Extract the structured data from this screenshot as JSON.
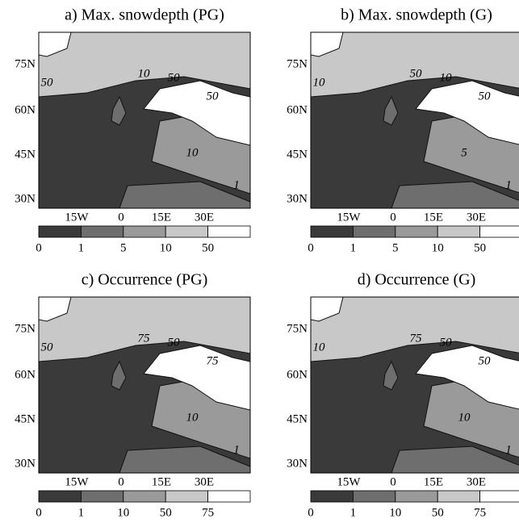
{
  "panels": [
    {
      "title": "a) Max. snowdepth (PG)",
      "lat_labels": [
        "75N",
        "60N",
        "45N",
        "30N"
      ],
      "lon_labels": [
        "15W",
        "0",
        "15E",
        "30E"
      ],
      "colorbar": [
        0,
        1,
        5,
        10,
        50
      ],
      "contour_labels": [
        10,
        50,
        50,
        50,
        10,
        1
      ]
    },
    {
      "title": "b) Max. snowdepth (G)",
      "lat_labels": [
        "75N",
        "60N",
        "45N",
        "30N"
      ],
      "lon_labels": [
        "15W",
        "0",
        "15E",
        "30E"
      ],
      "colorbar": [
        0,
        1,
        5,
        10,
        50
      ],
      "contour_labels": [
        50,
        10,
        10,
        50,
        5,
        1
      ]
    },
    {
      "title": "c) Occurrence (PG)",
      "lat_labels": [
        "75N",
        "60N",
        "45N",
        "30N"
      ],
      "lon_labels": [
        "15W",
        "0",
        "15E",
        "30E"
      ],
      "colorbar": [
        0,
        1,
        10,
        50,
        75
      ],
      "contour_labels": [
        75,
        50,
        50,
        75,
        10,
        1
      ]
    },
    {
      "title": "d) Occurrence (G)",
      "lat_labels": [
        "75N",
        "60N",
        "45N",
        "30N"
      ],
      "lon_labels": [
        "15W",
        "0",
        "15E",
        "30E"
      ],
      "colorbar": [
        0,
        1,
        10,
        50,
        75
      ],
      "contour_labels": [
        75,
        50,
        10,
        50,
        10,
        1
      ]
    }
  ]
}
